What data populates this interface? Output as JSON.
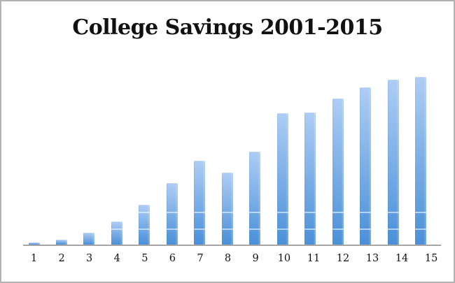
{
  "chart_data": {
    "type": "bar",
    "title": "College Savings 2001-2015",
    "categories": [
      "1",
      "2",
      "3",
      "4",
      "5",
      "6",
      "7",
      "8",
      "9",
      "10",
      "11",
      "12",
      "13",
      "14",
      "15"
    ],
    "values": [
      3,
      7,
      17,
      33,
      57,
      88,
      120,
      103,
      133,
      188,
      189,
      209,
      225,
      236,
      240
    ],
    "values_note": "relative units estimated from bar pixel heights; no value axis is shown in the image",
    "xlabel": "",
    "ylabel": "",
    "ylim": [
      0,
      248
    ],
    "grid": "two faint white horizontal gridlines near the baseline, visible only where they cross bars",
    "faint_gridlines": [
      21,
      45
    ],
    "legend": "none",
    "colors": {
      "bar_gradient_top": "#aecdf4",
      "bar_gradient_bottom": "#4a90d8",
      "axis_line": "#a6a6a6",
      "text": "#111111",
      "frame_border": "#b3b3b3",
      "background": "#ffffff"
    }
  }
}
